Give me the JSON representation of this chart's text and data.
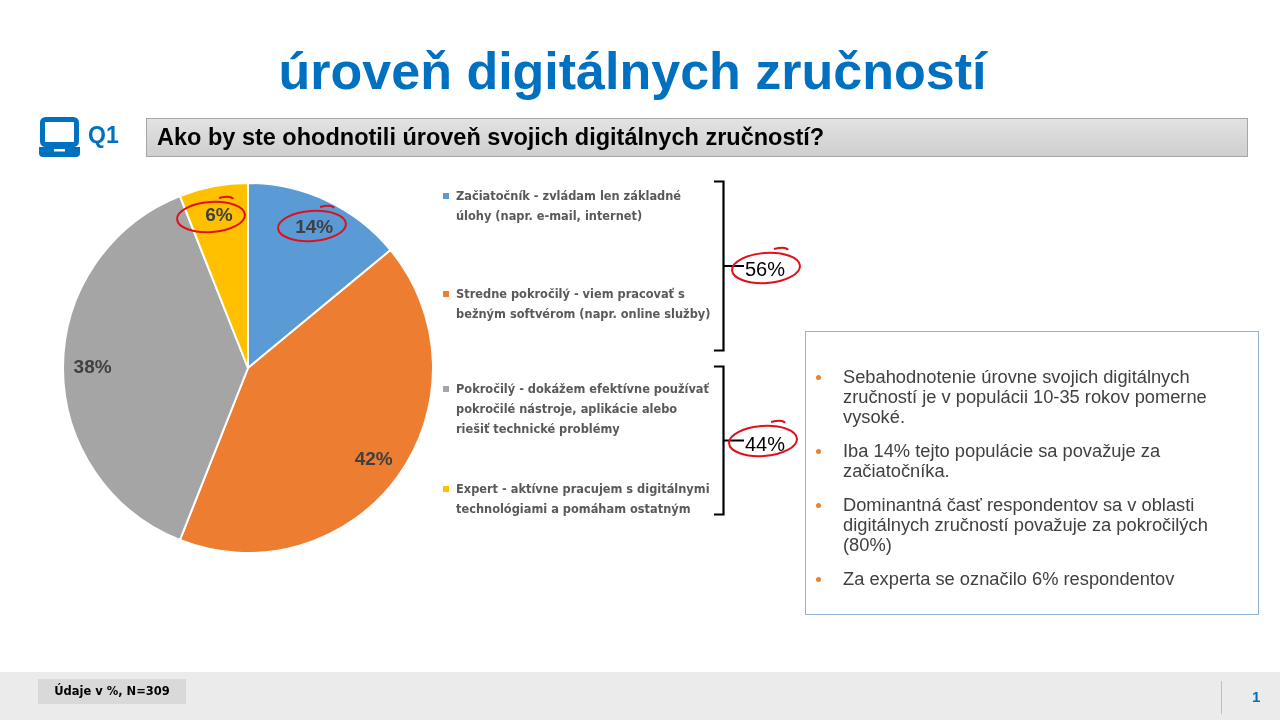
{
  "chart_data": {
    "type": "pie",
    "title": "úroveň digitálnych zručností",
    "subtitle": "Ako by ste ohodnotili úroveň svojich digitálnych zručností?",
    "categories": [
      "Začiatočník - zvládam len základné úlohy (napr. e-mail, internet)",
      "Stredne pokročilý - viem pracovať s bežným softvérom (napr. online služby)",
      "Pokročilý - dokážem efektívne používať pokročilé nástroje, aplikácie alebo riešiť technické problémy",
      "Expert - aktívne pracujem s digitálnymi technológiami a pomáham ostatným"
    ],
    "values": [
      14,
      42,
      38,
      6
    ],
    "colors": [
      "#5b9bd5",
      "#ed7d31",
      "#a5a5a5",
      "#ffc000"
    ],
    "value_labels": [
      "14%",
      "42%",
      "38%",
      "6%"
    ],
    "legend": "right",
    "annotations": [
      "Q1",
      "56%",
      "44%",
      "Sebahodnotenie úrovne svojich digitálnych zručností je v populácii 10-35 rokov pomerne vysoké.",
      "Iba 14% tejto populácie sa považuje za začiatočníka.",
      "Dominantná časť respondentov sa v oblasti digitálnych zručností považuje za pokročilých (80%)",
      "Za experta se označilo 6% respondentov",
      "Údaje v %, N=309",
      "1"
    ]
  }
}
